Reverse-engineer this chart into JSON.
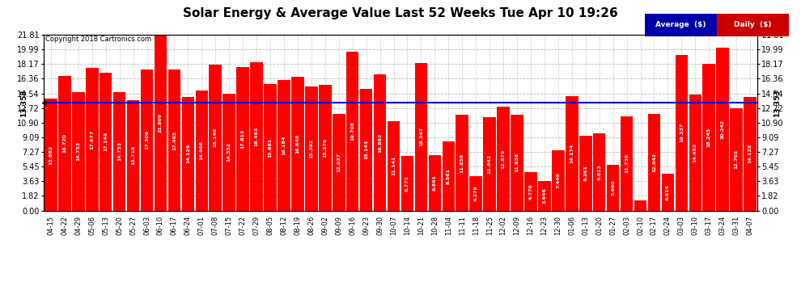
{
  "title": "Solar Energy & Average Value Last 52 Weeks Tue Apr 10 19:26",
  "copyright": "Copyright 2018 Cartronics.com",
  "average_line": 13.353,
  "yticks": [
    0.0,
    1.82,
    3.63,
    5.45,
    7.27,
    9.09,
    10.9,
    12.72,
    14.54,
    16.36,
    18.17,
    19.99,
    21.81
  ],
  "ylim": [
    0.0,
    21.81
  ],
  "bar_color": "#FF0000",
  "avg_line_color": "#0000CC",
  "background_color": "#FFFFFF",
  "categories": [
    "04-15",
    "04-22",
    "04-29",
    "05-06",
    "05-13",
    "05-20",
    "05-27",
    "06-03",
    "06-10",
    "06-17",
    "06-24",
    "07-01",
    "07-08",
    "07-15",
    "07-22",
    "07-29",
    "08-05",
    "08-12",
    "08-19",
    "08-26",
    "09-02",
    "09-09",
    "09-16",
    "09-23",
    "09-30",
    "10-07",
    "10-14",
    "10-21",
    "10-28",
    "11-04",
    "11-11",
    "11-18",
    "11-25",
    "12-02",
    "12-09",
    "12-16",
    "12-23",
    "12-30",
    "01-06",
    "01-13",
    "01-20",
    "01-27",
    "02-03",
    "02-10",
    "02-17",
    "02-24",
    "03-03",
    "03-10",
    "03-17",
    "03-24",
    "03-31",
    "04-07"
  ],
  "values": [
    13.882,
    16.72,
    14.753,
    17.677,
    17.149,
    14.753,
    13.718,
    17.509,
    21.809,
    17.465,
    14.126,
    14.908,
    18.14,
    14.552,
    17.813,
    18.463,
    15.681,
    16.184,
    16.648,
    15.392,
    15.576,
    12.037,
    19.708,
    15.143,
    16.892,
    11.141,
    6.771,
    18.347,
    6.891,
    8.561,
    11.858,
    4.276,
    11.642,
    12.879,
    11.938,
    4.77,
    3.646,
    7.449,
    14.174,
    9.261,
    9.613,
    5.66,
    11.736,
    1.293,
    12.042,
    4.614,
    19.337,
    14.452,
    18.245,
    20.242,
    12.703,
    14.128
  ],
  "legend_bg": "#000080",
  "legend_avg_color": "#0000FF",
  "legend_daily_color": "#FF0000",
  "left_annotation": "13.353",
  "right_annotation": "13.353",
  "title_fontsize": 11,
  "tick_fontsize": 7,
  "bar_text_fontsize": 4.5
}
